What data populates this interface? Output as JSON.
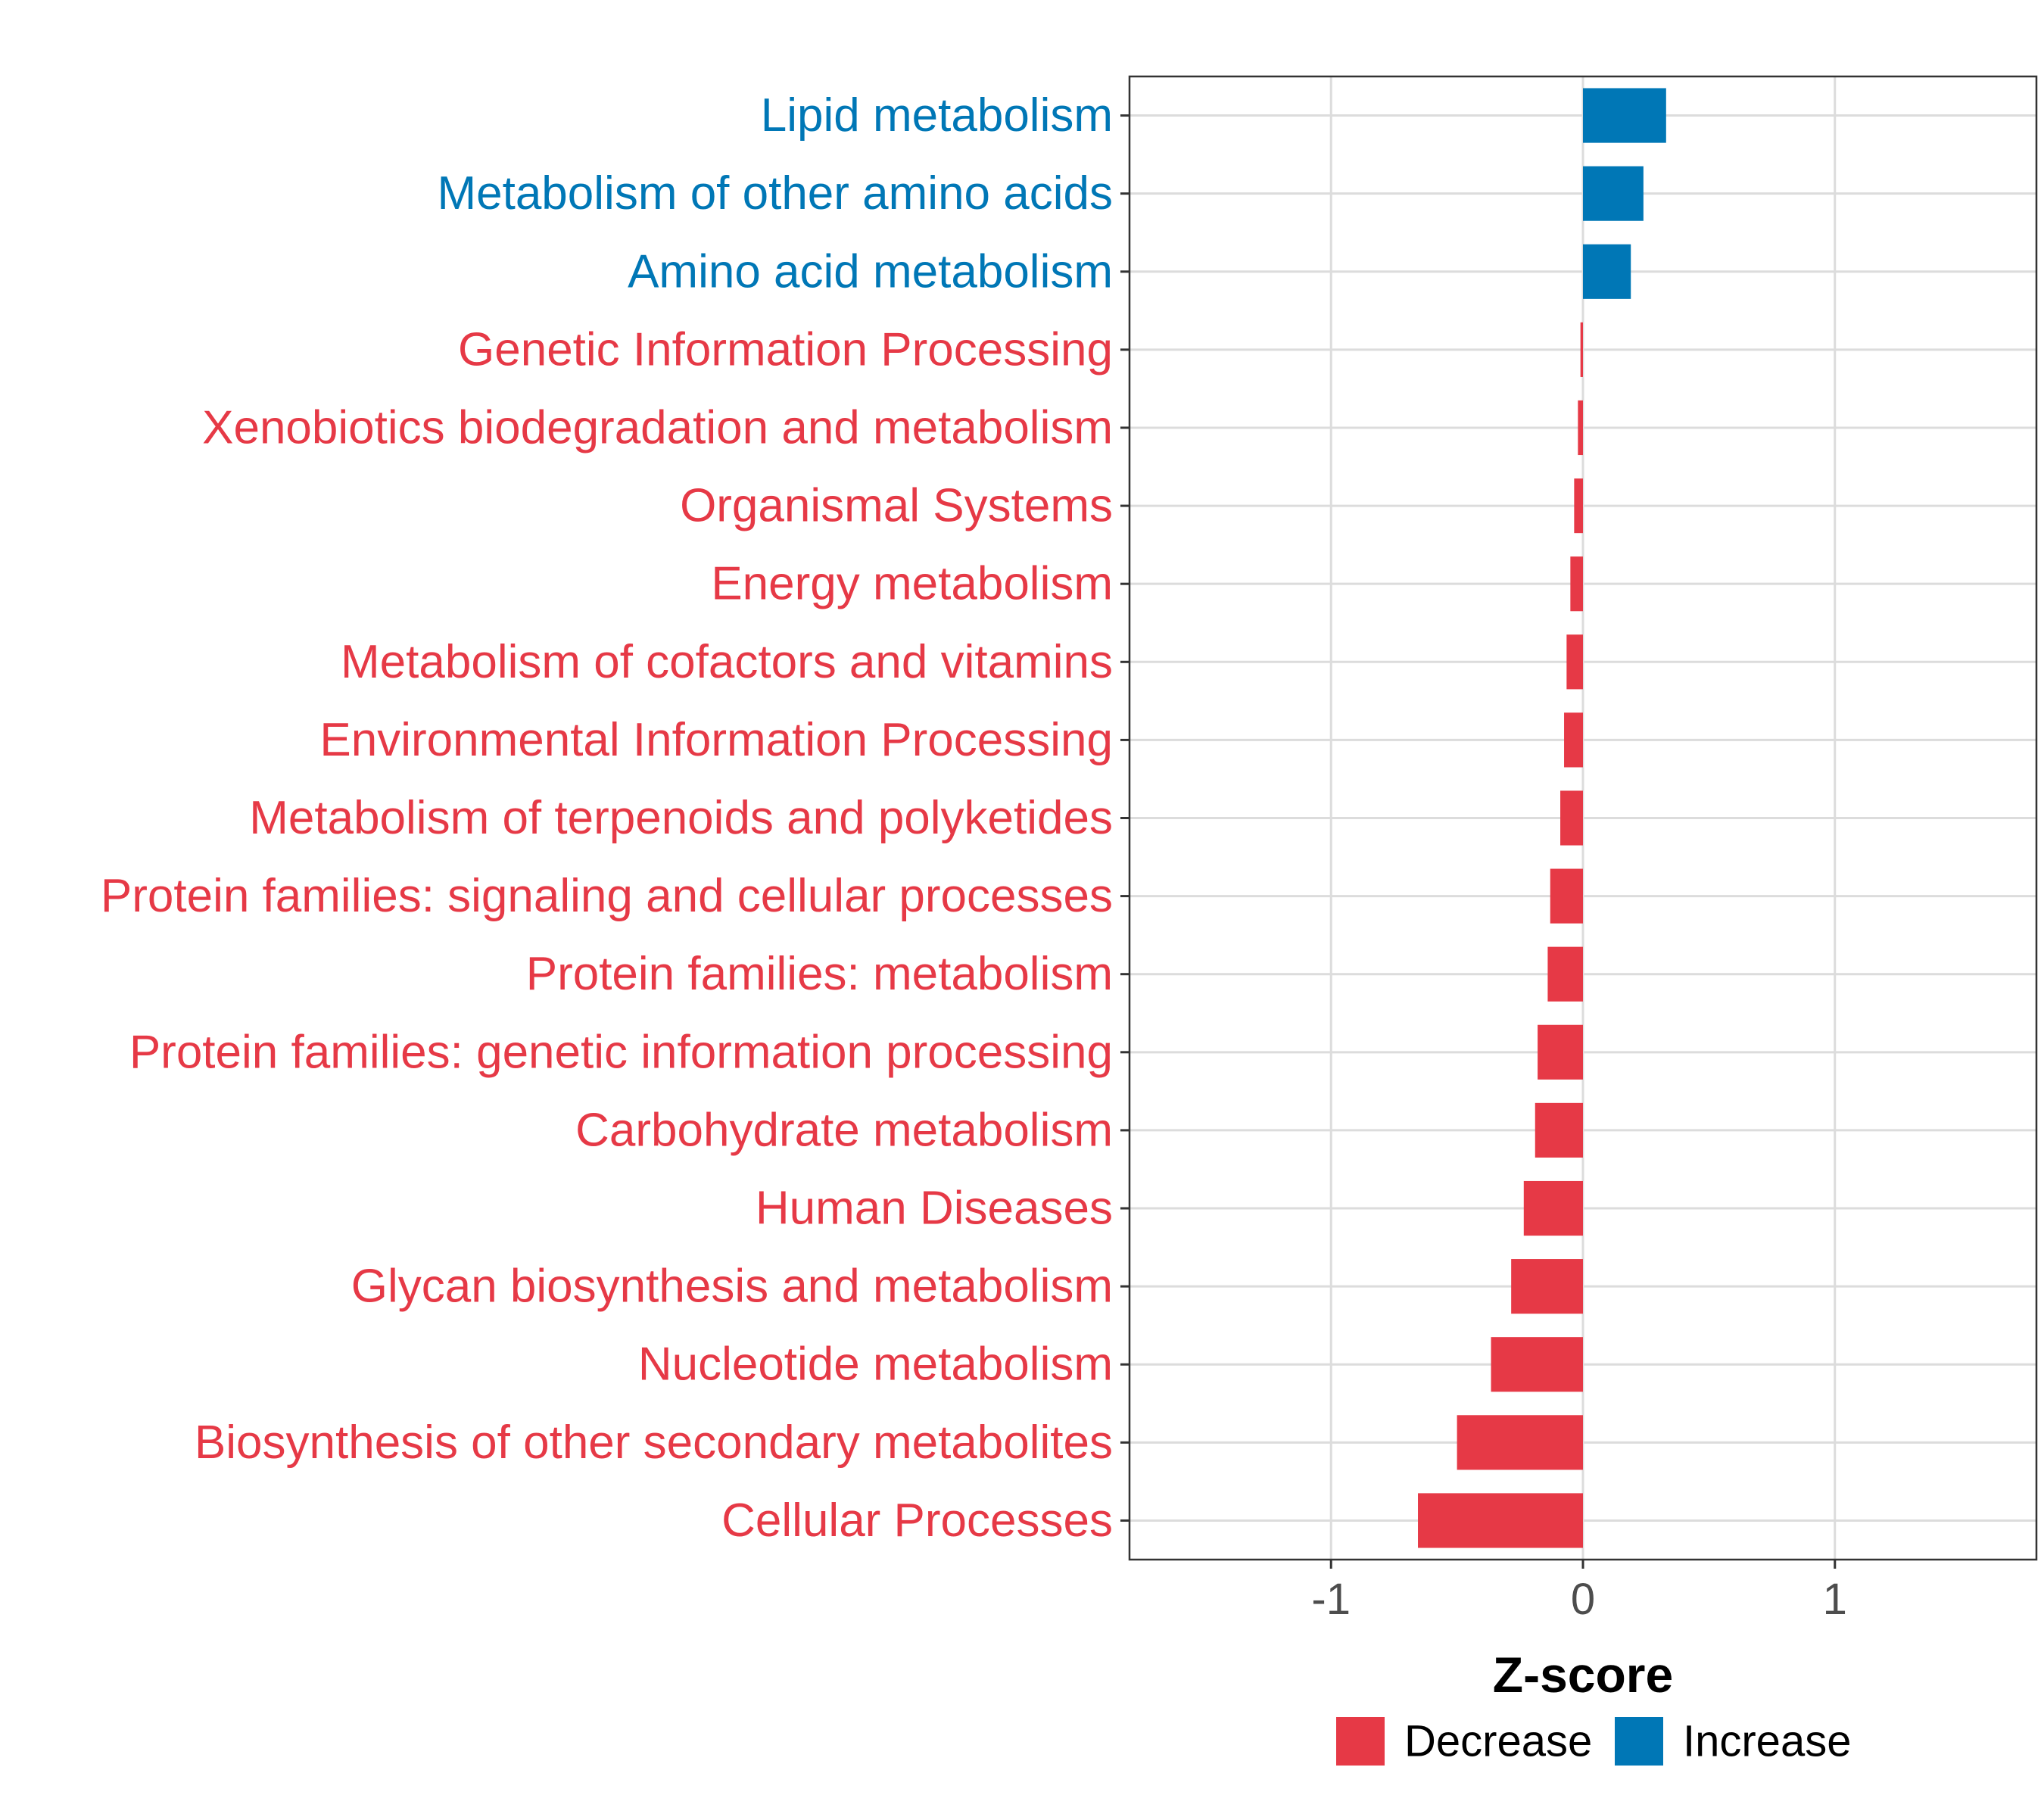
{
  "chart_data": {
    "type": "bar",
    "orientation": "horizontal",
    "title": "",
    "xlabel": "Z-score",
    "ylabel": "",
    "xlim": [
      -1.8,
      1.8
    ],
    "xticks": [
      -1,
      0,
      1
    ],
    "xtick_labels": [
      "-1",
      "0",
      "1"
    ],
    "grid": true,
    "legend_position": "bottom",
    "colors": {
      "Decrease": "#e63946",
      "Increase": "#0077b6"
    },
    "legend": [
      {
        "name": "Decrease",
        "color": "#e63946"
      },
      {
        "name": "Increase",
        "color": "#0077b6"
      }
    ],
    "bars": [
      {
        "category": "Lipid metabolism",
        "value": 0.33,
        "direction": "Increase"
      },
      {
        "category": "Metabolism of other amino acids",
        "value": 0.24,
        "direction": "Increase"
      },
      {
        "category": "Amino acid metabolism",
        "value": 0.19,
        "direction": "Increase"
      },
      {
        "category": "Genetic Information Processing",
        "value": -0.01,
        "direction": "Decrease"
      },
      {
        "category": "Xenobiotics biodegradation and metabolism",
        "value": -0.02,
        "direction": "Decrease"
      },
      {
        "category": "Organismal Systems",
        "value": -0.035,
        "direction": "Decrease"
      },
      {
        "category": "Energy metabolism",
        "value": -0.05,
        "direction": "Decrease"
      },
      {
        "category": "Metabolism of cofactors and vitamins",
        "value": -0.065,
        "direction": "Decrease"
      },
      {
        "category": "Environmental Information Processing",
        "value": -0.075,
        "direction": "Decrease"
      },
      {
        "category": "Metabolism of terpenoids and polyketides",
        "value": -0.09,
        "direction": "Decrease"
      },
      {
        "category": "Protein families: signaling and cellular processes",
        "value": -0.13,
        "direction": "Decrease"
      },
      {
        "category": "Protein families: metabolism",
        "value": -0.14,
        "direction": "Decrease"
      },
      {
        "category": "Protein families: genetic information processing",
        "value": -0.18,
        "direction": "Decrease"
      },
      {
        "category": "Carbohydrate metabolism",
        "value": -0.19,
        "direction": "Decrease"
      },
      {
        "category": "Human Diseases",
        "value": -0.235,
        "direction": "Decrease"
      },
      {
        "category": "Glycan biosynthesis and metabolism",
        "value": -0.285,
        "direction": "Decrease"
      },
      {
        "category": "Nucleotide metabolism",
        "value": -0.365,
        "direction": "Decrease"
      },
      {
        "category": "Biosynthesis of other secondary metabolites",
        "value": -0.5,
        "direction": "Decrease"
      },
      {
        "category": "Cellular Processes",
        "value": -0.655,
        "direction": "Decrease"
      }
    ]
  }
}
